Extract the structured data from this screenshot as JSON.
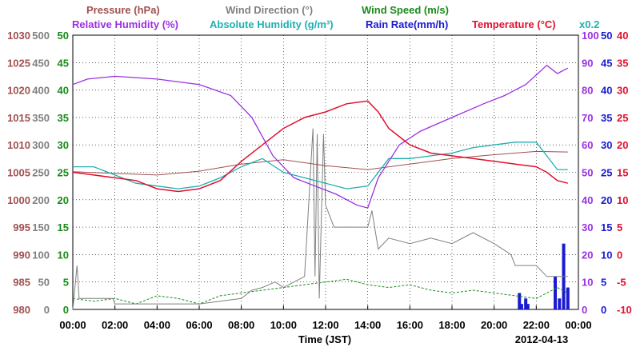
{
  "chart_data": {
    "type": "line",
    "date": "2012-04-13",
    "xlabel": "Time (JST)",
    "x_ticks": [
      "00:00",
      "02:00",
      "04:00",
      "06:00",
      "08:00",
      "10:00",
      "12:00",
      "14:00",
      "16:00",
      "18:00",
      "20:00",
      "22:00",
      "00:00"
    ],
    "legend": {
      "row1": [
        {
          "name": "Pressure (hPa)",
          "color": "#a05050"
        },
        {
          "name": "Wind Direction (°)",
          "color": "#808080"
        },
        {
          "name": "Wind Speed (m/s)",
          "color": "#1a8a1a"
        }
      ],
      "row2": [
        {
          "name": "Relative Humidity (%)",
          "color": "#9b30e0"
        },
        {
          "name": "Absolute Humidity (g/m³)",
          "color": "#20b0b0"
        },
        {
          "name": "Rain Rate(mm/h)",
          "color": "#1a1ad0"
        },
        {
          "name": "Temperature (°C)",
          "color": "#e01030"
        }
      ],
      "scale_note": "x0.2"
    },
    "axes": {
      "pressure": {
        "ticks": [
          "1030",
          "1025",
          "1020",
          "1015",
          "1010",
          "1005",
          "1000",
          "995",
          "990",
          "985",
          "980"
        ],
        "color": "#a05050",
        "ylim": [
          980,
          1030
        ]
      },
      "wind_direction": {
        "ticks": [
          "500",
          "450",
          "400",
          "350",
          "300",
          "250",
          "200",
          "150",
          "100",
          "50",
          "0"
        ],
        "color": "#808080",
        "ylim": [
          0,
          500
        ]
      },
      "wind_speed": {
        "ticks": [
          "50",
          "45",
          "40",
          "35",
          "30",
          "25",
          "20",
          "15",
          "10",
          "5",
          "0"
        ],
        "color": "#1a8a1a",
        "ylim": [
          0,
          50
        ]
      },
      "relative_humidity": {
        "ticks": [
          "100",
          "90",
          "80",
          "70",
          "60",
          "50",
          "40",
          "30",
          "20",
          "10",
          "0"
        ],
        "color": "#9b30e0",
        "ylim": [
          0,
          100
        ]
      },
      "rain_rate": {
        "ticks": [
          "50",
          "45",
          "40",
          "35",
          "30",
          "25",
          "20",
          "15",
          "10",
          "5",
          "0"
        ],
        "color": "#1a1ad0",
        "ylim": [
          0,
          50
        ]
      },
      "temperature": {
        "ticks": [
          "40",
          "35",
          "30",
          "25",
          "20",
          "15",
          "10",
          "5",
          "0",
          "-5",
          "-10"
        ],
        "color": "#e01030",
        "ylim": [
          -10,
          40
        ]
      }
    },
    "series": [
      {
        "name": "Pressure (hPa)",
        "axis": "pressure",
        "x": [
          0,
          2,
          4,
          6,
          8,
          10,
          12,
          14,
          16,
          18,
          20,
          22,
          23.5
        ],
        "values": [
          1005.1,
          1004.8,
          1004.5,
          1005.2,
          1006.5,
          1007.3,
          1006.2,
          1005.5,
          1006.5,
          1007.5,
          1008.2,
          1008.8,
          1008.7
        ]
      },
      {
        "name": "Relative Humidity (%)",
        "axis": "relative_humidity",
        "x": [
          0,
          0.7,
          2,
          4,
          6,
          7.5,
          8.5,
          9.5,
          10.5,
          11.5,
          12.5,
          13.5,
          14,
          14.5,
          15.5,
          16.5,
          18,
          19.5,
          20.5,
          21.5,
          22.5,
          23,
          23.5
        ],
        "values": [
          82,
          84,
          85,
          84,
          82,
          78,
          70,
          56,
          48,
          45,
          42,
          38,
          37,
          48,
          60,
          65,
          70,
          75,
          78,
          82,
          89,
          86,
          88
        ]
      },
      {
        "name": "Absolute Humidity (g/m³)",
        "axis": "relative_humidity",
        "x": [
          0,
          1,
          2,
          3,
          4,
          5,
          6,
          7,
          8,
          9,
          10,
          11,
          12,
          13,
          14,
          15,
          16,
          17,
          18,
          19,
          20,
          21,
          22,
          22.5,
          23,
          23.5
        ],
        "values": [
          52,
          52,
          49,
          46,
          45,
          44,
          45,
          48,
          52,
          55,
          50,
          48,
          46,
          44,
          45,
          55,
          55,
          56,
          57,
          59,
          60,
          61,
          61,
          56,
          51,
          51
        ]
      },
      {
        "name": "Temperature (°C)",
        "axis": "temperature",
        "x": [
          0,
          1,
          2,
          3,
          4,
          5,
          6,
          7,
          8,
          9,
          10,
          11,
          12,
          13,
          14,
          14.5,
          15,
          16,
          17,
          18,
          19,
          20,
          21,
          22,
          22.5,
          23,
          23.5
        ],
        "values": [
          15,
          14.5,
          14,
          13.5,
          12,
          11.5,
          12,
          13.5,
          17,
          20,
          23,
          25,
          26,
          27.5,
          28,
          26,
          23,
          20,
          18.5,
          18,
          17.5,
          17,
          16.5,
          16,
          15,
          13.5,
          13
        ]
      },
      {
        "name": "Wind Speed (m/s)",
        "axis": "wind_speed",
        "x": [
          0,
          1,
          2,
          3,
          4,
          5,
          6,
          7,
          8,
          9,
          10,
          11,
          12,
          13,
          14,
          15,
          16,
          17,
          18,
          19,
          20,
          21,
          22,
          23,
          23.5
        ],
        "values": [
          2,
          1.5,
          2,
          1,
          2.5,
          2,
          1,
          2.5,
          3,
          3.5,
          4,
          4.5,
          5,
          5.5,
          4.5,
          4,
          4.5,
          3.5,
          3,
          3.5,
          3,
          2.5,
          2,
          4,
          3
        ]
      },
      {
        "name": "Wind Direction (°)",
        "axis": "wind_direction",
        "x": [
          0,
          0.2,
          0.3,
          1,
          1.9,
          2,
          3,
          4,
          5,
          6,
          7,
          8,
          8.5,
          9,
          9.6,
          10,
          11,
          11.4,
          11.5,
          11.6,
          11.7,
          11.9,
          12,
          12.4,
          13,
          13.5,
          14,
          14.2,
          14.5,
          15,
          16,
          17,
          18,
          19,
          20,
          20.8,
          21,
          22,
          22.5,
          23,
          23.5
        ],
        "values": [
          0,
          80,
          20,
          20,
          20,
          10,
          10,
          10,
          10,
          10,
          15,
          20,
          35,
          40,
          50,
          40,
          60,
          330,
          60,
          320,
          20,
          320,
          190,
          150,
          150,
          150,
          150,
          180,
          110,
          130,
          120,
          130,
          120,
          140,
          120,
          100,
          80,
          80,
          60,
          60,
          60
        ]
      },
      {
        "name": "Rain Rate(mm/h)",
        "axis": "rain_rate",
        "x": [
          21.2,
          21.3,
          21.5,
          21.6,
          22.9,
          23.1,
          23.3,
          23.5
        ],
        "values": [
          3,
          1,
          2,
          1,
          6,
          2,
          12,
          4
        ]
      }
    ]
  }
}
